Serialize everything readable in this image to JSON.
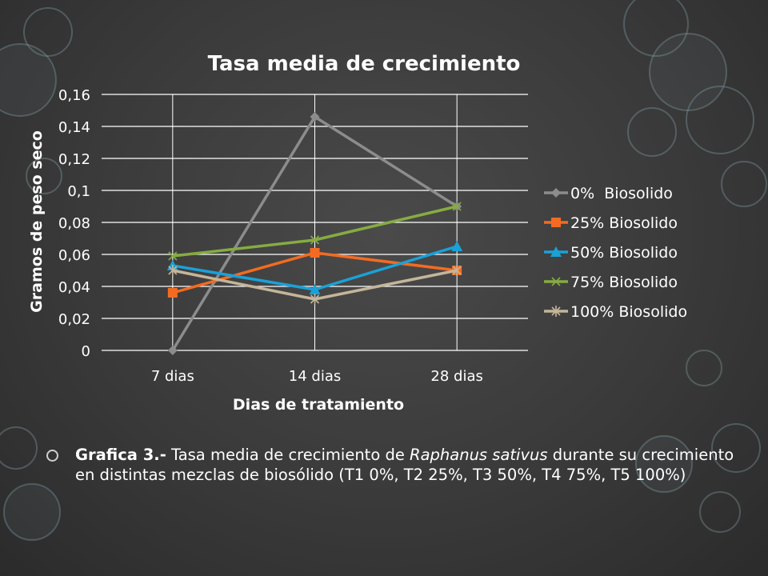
{
  "chart_data": {
    "type": "line",
    "title": "Tasa media de crecimiento",
    "xlabel": "Dias de tratamiento",
    "ylabel": "Gramos de peso seco",
    "categories": [
      "7 dias",
      "14 dias",
      "28 dias"
    ],
    "y_ticks": [
      "0",
      "0,02",
      "0,04",
      "0,06",
      "0,08",
      "0,1",
      "0,12",
      "0,14",
      "0,16"
    ],
    "ylim": [
      0,
      0.16
    ],
    "grid": true,
    "legend_position": "right",
    "series": [
      {
        "name": "0%  Biosolido",
        "values": [
          0.0,
          0.146,
          0.09
        ],
        "color": "#8c8c8c",
        "marker": "diamond"
      },
      {
        "name": "25% Biosolido",
        "values": [
          0.036,
          0.061,
          0.05
        ],
        "color": "#f36b22",
        "marker": "square"
      },
      {
        "name": "50% Biosolido",
        "values": [
          0.053,
          0.038,
          0.065
        ],
        "color": "#1aa1d8",
        "marker": "triangle"
      },
      {
        "name": "75% Biosolido",
        "values": [
          0.059,
          0.069,
          0.09
        ],
        "color": "#86ac41",
        "marker": "x"
      },
      {
        "name": "100% Biosolido",
        "values": [
          0.05,
          0.032,
          0.05
        ],
        "color": "#c4b59a",
        "marker": "star"
      }
    ]
  },
  "caption": {
    "label": "Grafica 3.-",
    "text_before": " Tasa media de crecimiento de ",
    "species": "Raphanus sativus",
    "text_after": " durante su crecimiento en distintas mezclas de biosólido (T1 0%, T2 25%, T3 50%, T4 75%, T5 100%)"
  }
}
